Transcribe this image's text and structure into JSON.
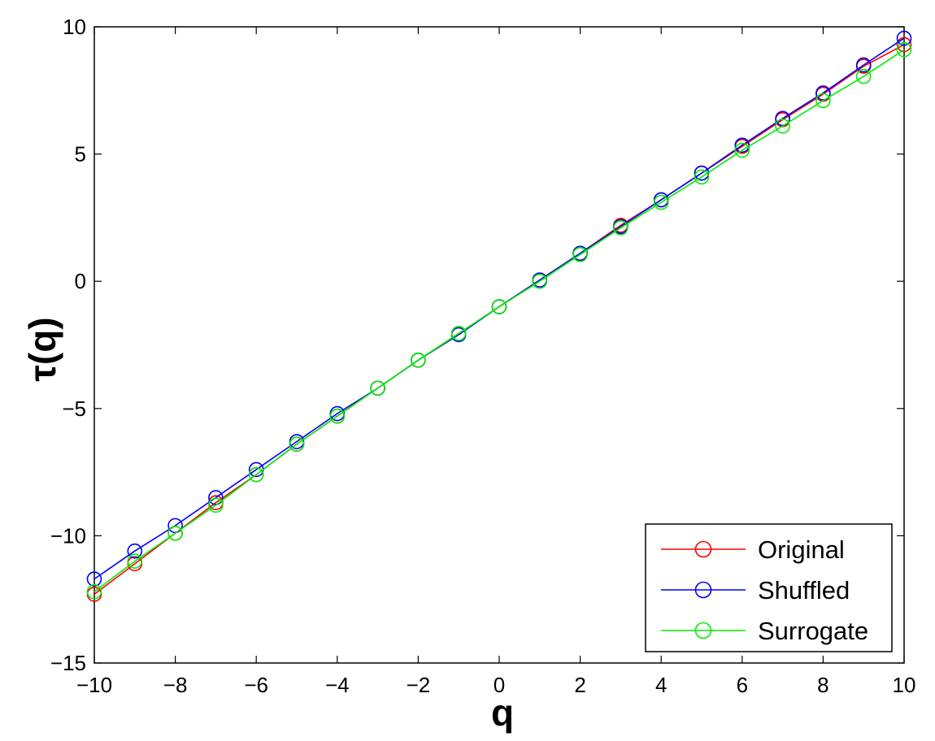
{
  "chart_data": {
    "type": "line",
    "xlabel": "q",
    "ylabel": "τ(q)",
    "xlim": [
      -10,
      10
    ],
    "ylim": [
      -15,
      10
    ],
    "x_ticks": [
      -10,
      -8,
      -6,
      -4,
      -2,
      0,
      2,
      4,
      6,
      8,
      10
    ],
    "y_ticks": [
      -15,
      -10,
      -5,
      0,
      5,
      10
    ],
    "x_tick_labels": [
      "−10",
      "−8",
      "−6",
      "−4",
      "−2",
      "0",
      "2",
      "4",
      "6",
      "8",
      "10"
    ],
    "y_tick_labels": [
      "−15",
      "−10",
      "−5",
      "0",
      "5",
      "10"
    ],
    "grid": false,
    "legend_position": "bottom-right",
    "x": [
      -10,
      -9,
      -8,
      -7,
      -6,
      -5,
      -4,
      -3,
      -2,
      -1,
      0,
      1,
      2,
      3,
      4,
      5,
      6,
      7,
      8,
      9,
      10
    ],
    "series": [
      {
        "name": "Original",
        "color": "#ff0000",
        "marker": "circle",
        "values": [
          -12.3,
          -11.1,
          -9.9,
          -8.7,
          -7.6,
          -6.4,
          -5.3,
          -4.2,
          -3.1,
          -2.05,
          -1.0,
          0.05,
          1.1,
          2.2,
          3.2,
          4.25,
          5.3,
          6.35,
          7.35,
          8.45,
          9.3
        ]
      },
      {
        "name": "Shuffled",
        "color": "#0000ff",
        "marker": "circle",
        "values": [
          -11.7,
          -10.6,
          -9.6,
          -8.5,
          -7.4,
          -6.3,
          -5.2,
          -4.2,
          -3.1,
          -2.1,
          -1.0,
          0.05,
          1.1,
          2.15,
          3.2,
          4.25,
          5.35,
          6.4,
          7.4,
          8.5,
          9.55
        ]
      },
      {
        "name": "Surrogate",
        "color": "#00ee00",
        "marker": "circle",
        "values": [
          -12.2,
          -11.0,
          -9.9,
          -8.8,
          -7.6,
          -6.4,
          -5.3,
          -4.2,
          -3.1,
          -2.05,
          -1.0,
          0.0,
          1.05,
          2.1,
          3.1,
          4.1,
          5.15,
          6.1,
          7.1,
          8.05,
          9.1
        ]
      }
    ]
  }
}
